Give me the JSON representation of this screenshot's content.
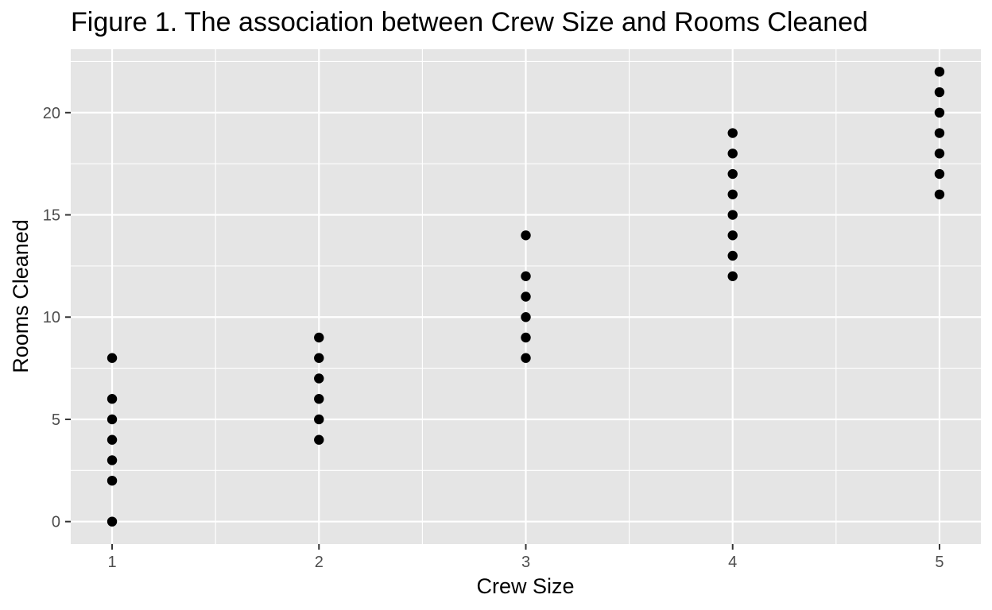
{
  "chart_data": {
    "type": "scatter",
    "title": "Figure 1. The association between Crew Size and Rooms Cleaned",
    "xlabel": "Crew Size",
    "ylabel": "Rooms Cleaned",
    "xlim": [
      0.8,
      5.2
    ],
    "ylim": [
      -1.1,
      23.1
    ],
    "x_ticks": [
      1,
      2,
      3,
      4,
      5
    ],
    "y_ticks": [
      0,
      5,
      10,
      15,
      20
    ],
    "grid": true,
    "legend": "none",
    "colors": {
      "panel_background": "#e5e5e5",
      "grid_major": "#ffffff",
      "point": "#000000",
      "tick_label": "#4d4d4d"
    },
    "points": [
      {
        "x": 1,
        "y": 0
      },
      {
        "x": 1,
        "y": 2
      },
      {
        "x": 1,
        "y": 3
      },
      {
        "x": 1,
        "y": 4
      },
      {
        "x": 1,
        "y": 5
      },
      {
        "x": 1,
        "y": 6
      },
      {
        "x": 1,
        "y": 8
      },
      {
        "x": 2,
        "y": 4
      },
      {
        "x": 2,
        "y": 5
      },
      {
        "x": 2,
        "y": 6
      },
      {
        "x": 2,
        "y": 7
      },
      {
        "x": 2,
        "y": 8
      },
      {
        "x": 2,
        "y": 9
      },
      {
        "x": 3,
        "y": 8
      },
      {
        "x": 3,
        "y": 9
      },
      {
        "x": 3,
        "y": 10
      },
      {
        "x": 3,
        "y": 11
      },
      {
        "x": 3,
        "y": 12
      },
      {
        "x": 3,
        "y": 14
      },
      {
        "x": 4,
        "y": 12
      },
      {
        "x": 4,
        "y": 13
      },
      {
        "x": 4,
        "y": 14
      },
      {
        "x": 4,
        "y": 15
      },
      {
        "x": 4,
        "y": 16
      },
      {
        "x": 4,
        "y": 17
      },
      {
        "x": 4,
        "y": 18
      },
      {
        "x": 4,
        "y": 19
      },
      {
        "x": 5,
        "y": 16
      },
      {
        "x": 5,
        "y": 17
      },
      {
        "x": 5,
        "y": 18
      },
      {
        "x": 5,
        "y": 19
      },
      {
        "x": 5,
        "y": 20
      },
      {
        "x": 5,
        "y": 21
      },
      {
        "x": 5,
        "y": 22
      }
    ]
  }
}
